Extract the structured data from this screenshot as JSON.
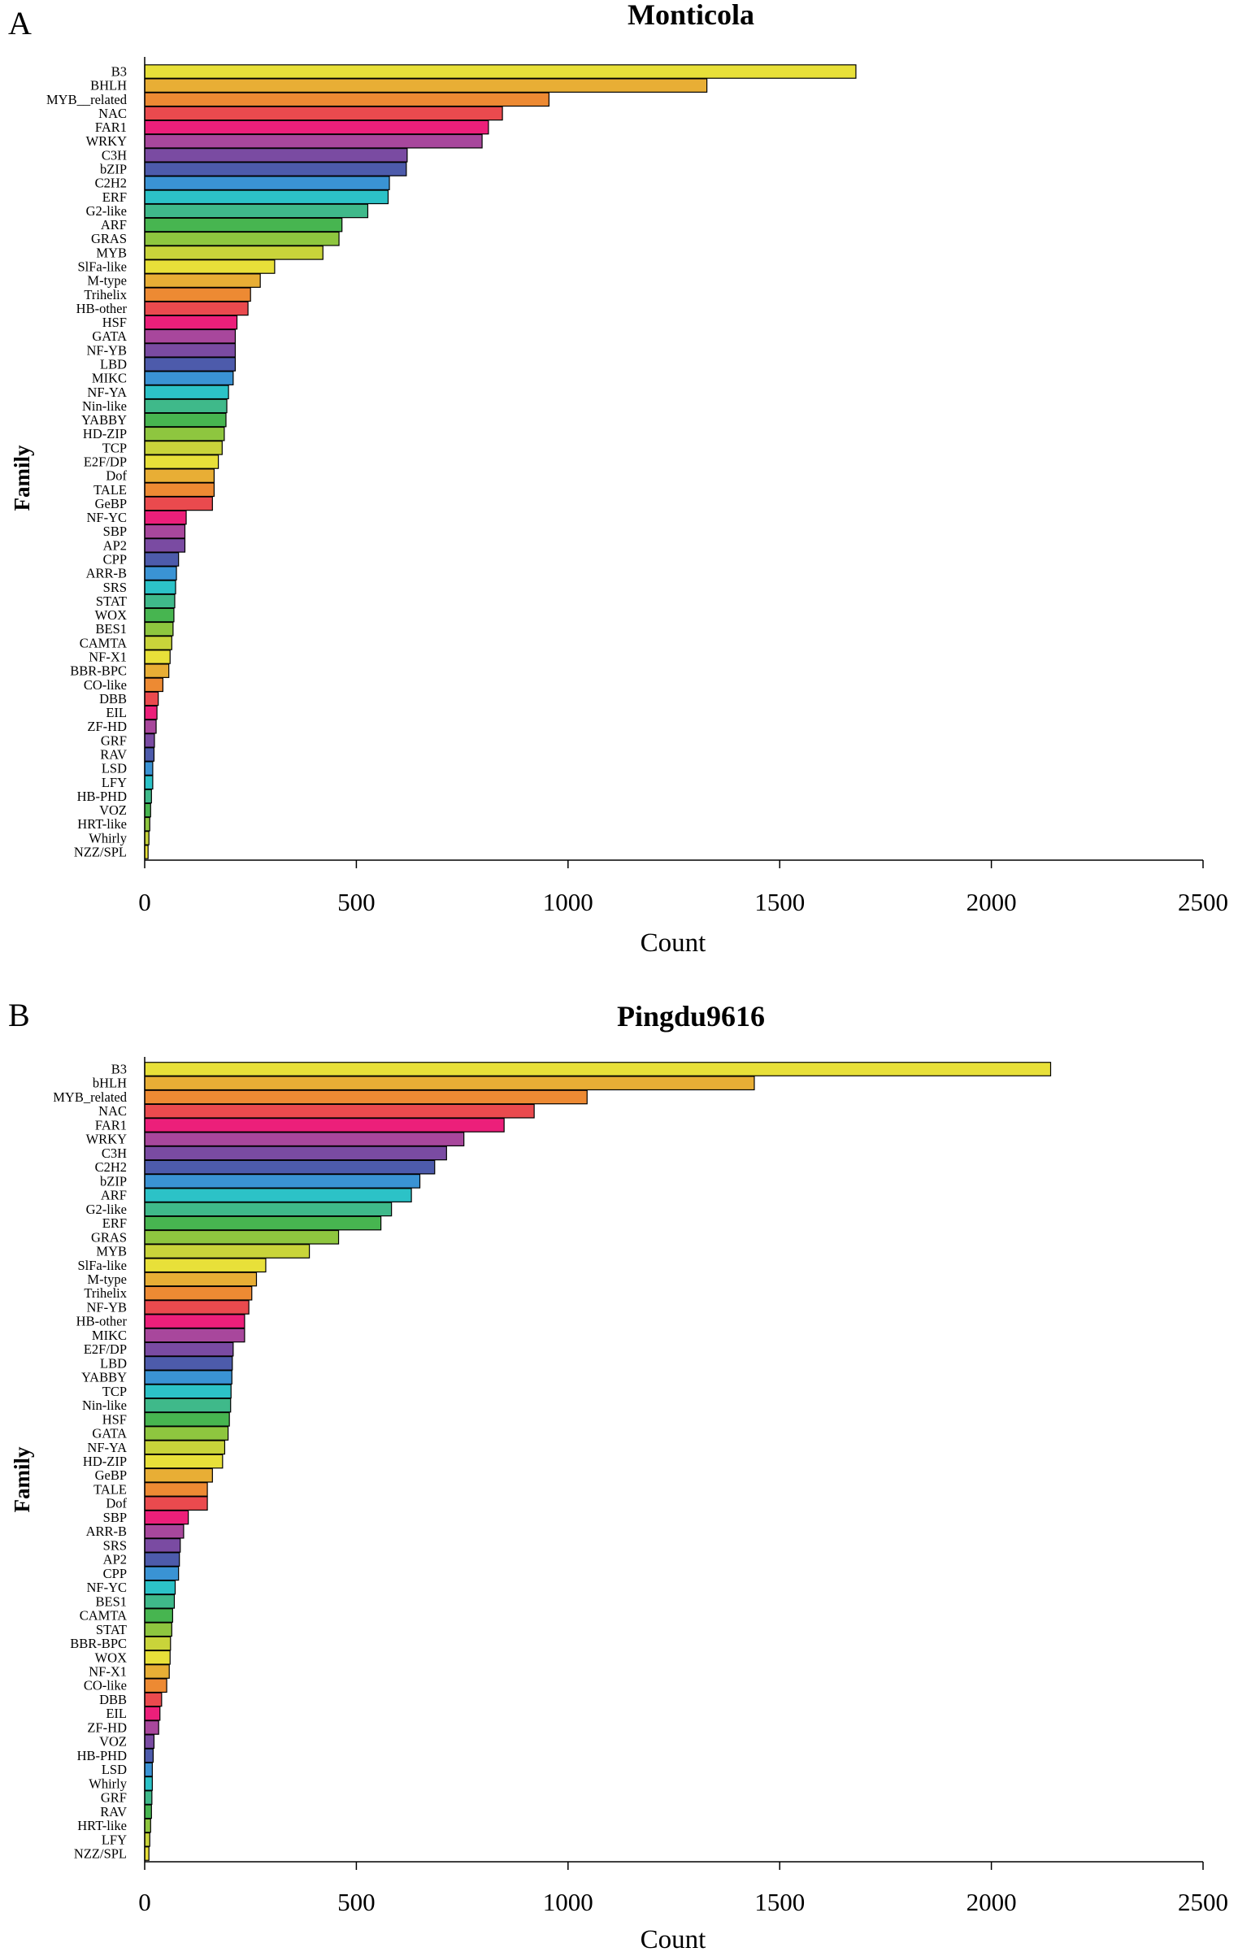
{
  "palette": [
    "#e8e039",
    "#e8ae35",
    "#ed8a33",
    "#ea4a4e",
    "#ec1f7a",
    "#a8479c",
    "#7a4ba2",
    "#4d5bab",
    "#3a93d4",
    "#2cc2c7",
    "#3fb98a",
    "#47b550",
    "#8ec63f",
    "#c9d43a"
  ],
  "chart_data": [
    {
      "type": "bar",
      "orientation": "horizontal",
      "panel": "A",
      "title": "Monticola",
      "xlabel": "Count",
      "ylabel": "Family",
      "xlim": [
        0,
        2500
      ],
      "xticks": [
        "0",
        "500",
        "1000",
        "1500",
        "2000",
        "2500"
      ],
      "categories": [
        "B3",
        "BHLH",
        "MYB__related",
        "NAC",
        "FAR1",
        "WRKY",
        "C3H",
        "bZIP",
        "C2H2",
        "ERF",
        "G2-like",
        "ARF",
        "GRAS",
        "MYB",
        "SlFa-like",
        "M-type",
        "Trihelix",
        "HB-other",
        "HSF",
        "GATA",
        "NF-YB",
        "LBD",
        "MIKC",
        "NF-YA",
        "Nin-like",
        "YABBY",
        "HD-ZIP",
        "TCP",
        "E2F/DP",
        "Dof",
        "TALE",
        "GeBP",
        "NF-YC",
        "SBP",
        "AP2",
        "CPP",
        "ARR-B",
        "SRS",
        "STAT",
        "WOX",
        "BES1",
        "CAMTA",
        "NF-X1",
        "BBR-BPC",
        "CO-like",
        "DBB",
        "EIL",
        "ZF-HD",
        "GRF",
        "RAV",
        "LSD",
        "LFY",
        "HB-PHD",
        "VOZ",
        "HRT-like",
        "Whirly",
        "NZZ/SPL"
      ],
      "values": [
        1680,
        1328,
        955,
        845,
        812,
        797,
        620,
        618,
        578,
        575,
        527,
        466,
        459,
        421,
        307,
        273,
        250,
        244,
        218,
        214,
        214,
        214,
        209,
        198,
        194,
        192,
        188,
        183,
        174,
        164,
        164,
        160,
        98,
        95,
        95,
        80,
        75,
        73,
        71,
        69,
        67,
        64,
        60,
        57,
        43,
        32,
        29,
        27,
        23,
        22,
        19,
        19,
        16,
        14,
        12,
        10,
        8
      ]
    },
    {
      "type": "bar",
      "orientation": "horizontal",
      "panel": "B",
      "title": "Pingdu9616",
      "xlabel": "Count",
      "ylabel": "Family",
      "xlim": [
        0,
        2500
      ],
      "xticks": [
        "0",
        "500",
        "1000",
        "1500",
        "2000",
        "2500"
      ],
      "categories": [
        "B3",
        "bHLH",
        "MYB_related",
        "NAC",
        "FAR1",
        "WRKY",
        "C3H",
        "C2H2",
        "bZIP",
        "ARF",
        "G2-like",
        "ERF",
        "GRAS",
        "MYB",
        "SlFa-like",
        "M-type",
        "Trihelix",
        "NF-YB",
        "HB-other",
        "MIKC",
        "E2F/DP",
        "LBD",
        "YABBY",
        "TCP",
        "Nin-like",
        "HSF",
        "GATA",
        "NF-YA",
        "HD-ZIP",
        "GeBP",
        "TALE",
        "Dof",
        "SBP",
        "ARR-B",
        "SRS",
        "AP2",
        "CPP",
        "NF-YC",
        "BES1",
        "CAMTA",
        "STAT",
        "BBR-BPC",
        "WOX",
        "NF-X1",
        "CO-like",
        "DBB",
        "EIL",
        "ZF-HD",
        "VOZ",
        "HB-PHD",
        "LSD",
        "Whirly",
        "GRF",
        "RAV",
        "HRT-like",
        "LFY",
        "NZZ/SPL"
      ],
      "values": [
        2140,
        1440,
        1045,
        920,
        849,
        754,
        713,
        685,
        650,
        630,
        583,
        558,
        458,
        389,
        286,
        264,
        253,
        246,
        236,
        236,
        209,
        207,
        206,
        204,
        203,
        200,
        197,
        189,
        184,
        160,
        148,
        148,
        103,
        92,
        84,
        82,
        80,
        72,
        70,
        66,
        64,
        61,
        60,
        58,
        52,
        40,
        36,
        33,
        22,
        20,
        18,
        18,
        17,
        16,
        14,
        12,
        10
      ]
    }
  ]
}
